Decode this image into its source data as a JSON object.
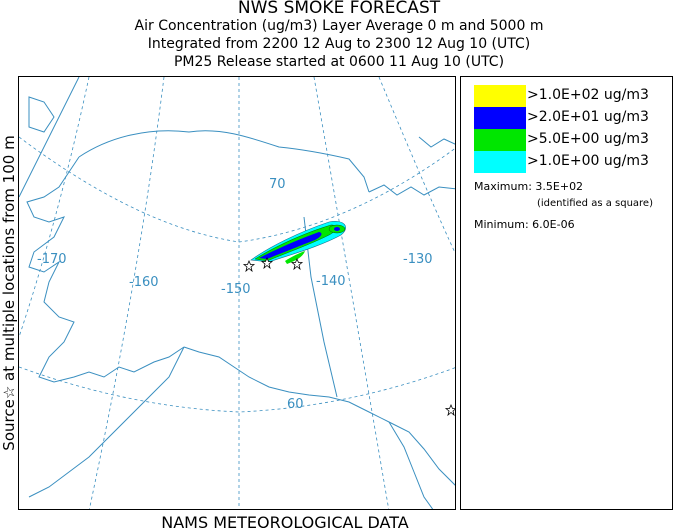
{
  "header": {
    "title": "NWS SMOKE FORECAST",
    "line2": "Air Concentration (ug/m3) Layer Average    0 m and  5000 m",
    "line3": "Integrated from 2200 12 Aug to 2300 12 Aug 10 (UTC)",
    "line4": "PM25 Release started at 0600 11 Aug 10 (UTC)"
  },
  "side_label": "Source☆ at multiple locations  from  100 m",
  "footer": "NAMS METEOROLOGICAL DATA",
  "map": {
    "longitude_labels": [
      "-170",
      "-160",
      "-150",
      "-140",
      "-130"
    ],
    "latitude_labels": [
      "70",
      "60"
    ],
    "colors": {
      "coast": "#3a8fc0",
      "grid": "#3a8fc0",
      "star": "#000000"
    }
  },
  "legend": {
    "items": [
      {
        "label": ">1.0E+02 ug/m3",
        "color": "#ffff00"
      },
      {
        "label": ">2.0E+01 ug/m3",
        "color": "#0000ff"
      },
      {
        "label": ">5.0E+00 ug/m3",
        "color": "#00e600"
      },
      {
        "label": ">1.0E+00 ug/m3",
        "color": "#00ffff"
      }
    ],
    "maximum_label": "Maximum: 3.5E+02",
    "maximum_note": "(identified as a square)",
    "minimum_label": "Minimum: 6.0E-06"
  }
}
